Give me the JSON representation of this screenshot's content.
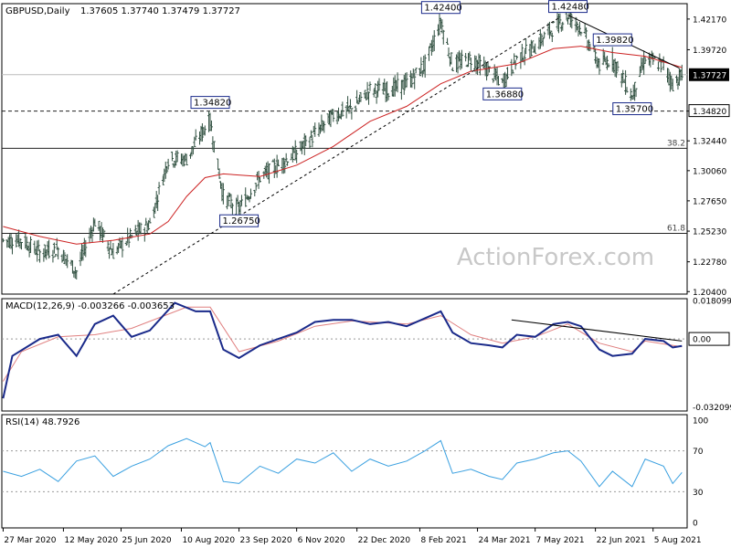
{
  "title": {
    "symbol": "GBPUSD,Daily",
    "ohlc": "1.37605 1.37740 1.37479 1.37727"
  },
  "watermark": "ActionForex.com",
  "chart_data": [
    {
      "type": "line",
      "name": "price",
      "ylim": [
        1.202,
        1.434
      ],
      "yticks": [
        "1.42170",
        "1.39720",
        "1.34820",
        "1.32440",
        "1.30060",
        "1.27650",
        "1.25230",
        "1.22780",
        "1.20400"
      ],
      "current_price_label": "1.37727",
      "current_price": 1.37727,
      "horizontal_levels": [
        {
          "value": 1.37727,
          "style": "solid",
          "color": "#bbbbbb"
        },
        {
          "value": 1.3482,
          "style": "dashed",
          "label": "1.34820"
        },
        {
          "value": 1.3185,
          "style": "solid",
          "label": "38.2"
        },
        {
          "value": 1.2505,
          "style": "solid",
          "label": "61.8"
        }
      ],
      "annotations": [
        {
          "text": "1.42400",
          "date": "2021-02-24",
          "value": 1.424
        },
        {
          "text": "1.42480",
          "date": "2021-06-01",
          "value": 1.4248
        },
        {
          "text": "1.39820",
          "date": "2021-07-05",
          "value": 1.3982
        },
        {
          "text": "1.36880",
          "date": "2021-04-12",
          "value": 1.3688
        },
        {
          "text": "1.35700",
          "date": "2021-07-20",
          "value": 1.357
        },
        {
          "text": "1.34820",
          "date": "2020-09-01",
          "value": 1.3482
        },
        {
          "text": "1.26750",
          "date": "2020-09-23",
          "value": 1.2675
        }
      ],
      "trendlines": [
        {
          "style": "dashed",
          "from": [
            "2020-06-19",
            1.202
          ],
          "to": [
            "2021-05-25",
            1.4225
          ]
        },
        {
          "style": "solid",
          "from": [
            "2021-06-01",
            1.4248
          ],
          "to": [
            "2021-08-25",
            1.3825
          ]
        }
      ],
      "close_series": [
        [
          "2020-03-27",
          1.245
        ],
        [
          "2020-04-10",
          1.245
        ],
        [
          "2020-04-24",
          1.235
        ],
        [
          "2020-05-08",
          1.238
        ],
        [
          "2020-05-22",
          1.22
        ],
        [
          "2020-06-05",
          1.26
        ],
        [
          "2020-06-19",
          1.235
        ],
        [
          "2020-07-03",
          1.248
        ],
        [
          "2020-07-17",
          1.258
        ],
        [
          "2020-07-31",
          1.31
        ],
        [
          "2020-08-14",
          1.31
        ],
        [
          "2020-08-28",
          1.335
        ],
        [
          "2020-09-01",
          1.34
        ],
        [
          "2020-09-11",
          1.28
        ],
        [
          "2020-09-23",
          1.27
        ],
        [
          "2020-10-09",
          1.295
        ],
        [
          "2020-10-23",
          1.305
        ],
        [
          "2020-11-06",
          1.315
        ],
        [
          "2020-11-20",
          1.33
        ],
        [
          "2020-12-04",
          1.345
        ],
        [
          "2020-12-18",
          1.35
        ],
        [
          "2021-01-01",
          1.365
        ],
        [
          "2021-01-15",
          1.365
        ],
        [
          "2021-01-29",
          1.37
        ],
        [
          "2021-02-12",
          1.385
        ],
        [
          "2021-02-24",
          1.42
        ],
        [
          "2021-03-05",
          1.385
        ],
        [
          "2021-03-19",
          1.39
        ],
        [
          "2021-04-02",
          1.38
        ],
        [
          "2021-04-12",
          1.37
        ],
        [
          "2021-04-23",
          1.39
        ],
        [
          "2021-05-07",
          1.4
        ],
        [
          "2021-05-21",
          1.415
        ],
        [
          "2021-06-01",
          1.424
        ],
        [
          "2021-06-11",
          1.415
        ],
        [
          "2021-06-25",
          1.385
        ],
        [
          "2021-07-05",
          1.39
        ],
        [
          "2021-07-20",
          1.36
        ],
        [
          "2021-07-30",
          1.39
        ],
        [
          "2021-08-13",
          1.385
        ],
        [
          "2021-08-20",
          1.37
        ],
        [
          "2021-08-27",
          1.3773
        ]
      ],
      "sma": [
        [
          "2020-03-27",
          1.256
        ],
        [
          "2020-04-24",
          1.248
        ],
        [
          "2020-05-22",
          1.242
        ],
        [
          "2020-06-19",
          1.245
        ],
        [
          "2020-07-17",
          1.25
        ],
        [
          "2020-07-31",
          1.26
        ],
        [
          "2020-08-14",
          1.28
        ],
        [
          "2020-08-28",
          1.295
        ],
        [
          "2020-09-11",
          1.298
        ],
        [
          "2020-10-09",
          1.296
        ],
        [
          "2020-11-06",
          1.305
        ],
        [
          "2020-12-04",
          1.32
        ],
        [
          "2021-01-01",
          1.34
        ],
        [
          "2021-01-29",
          1.352
        ],
        [
          "2021-02-24",
          1.37
        ],
        [
          "2021-03-19",
          1.38
        ],
        [
          "2021-04-23",
          1.386
        ],
        [
          "2021-05-21",
          1.398
        ],
        [
          "2021-06-11",
          1.4
        ],
        [
          "2021-07-05",
          1.395
        ],
        [
          "2021-07-30",
          1.392
        ],
        [
          "2021-08-27",
          1.383
        ]
      ]
    },
    {
      "type": "line",
      "name": "MACD",
      "label": "MACD(12,26,9) -0.003266 -0.003653",
      "ylim": [
        -0.034,
        0.019
      ],
      "yticks": [
        "0.018099",
        "0.00",
        "-0.032099"
      ],
      "zero_label": "0.00",
      "macd": [
        [
          "2020-03-27",
          -0.028
        ],
        [
          "2020-04-03",
          -0.008
        ],
        [
          "2020-04-24",
          0.0
        ],
        [
          "2020-05-08",
          0.002
        ],
        [
          "2020-05-22",
          -0.008
        ],
        [
          "2020-06-05",
          0.007
        ],
        [
          "2020-06-19",
          0.011
        ],
        [
          "2020-07-03",
          0.001
        ],
        [
          "2020-07-17",
          0.004
        ],
        [
          "2020-08-05",
          0.017
        ],
        [
          "2020-08-21",
          0.013
        ],
        [
          "2020-09-01",
          0.013
        ],
        [
          "2020-09-11",
          -0.005
        ],
        [
          "2020-09-23",
          -0.009
        ],
        [
          "2020-10-09",
          -0.003
        ],
        [
          "2020-10-23",
          0.0
        ],
        [
          "2020-11-06",
          0.003
        ],
        [
          "2020-11-20",
          0.008
        ],
        [
          "2020-12-04",
          0.009
        ],
        [
          "2020-12-18",
          0.009
        ],
        [
          "2021-01-01",
          0.007
        ],
        [
          "2021-01-15",
          0.008
        ],
        [
          "2021-01-29",
          0.006
        ],
        [
          "2021-02-24",
          0.013
        ],
        [
          "2021-03-05",
          0.003
        ],
        [
          "2021-03-19",
          -0.002
        ],
        [
          "2021-04-02",
          -0.003
        ],
        [
          "2021-04-12",
          -0.004
        ],
        [
          "2021-04-23",
          0.002
        ],
        [
          "2021-05-07",
          0.001
        ],
        [
          "2021-05-21",
          0.007
        ],
        [
          "2021-06-01",
          0.008
        ],
        [
          "2021-06-11",
          0.006
        ],
        [
          "2021-06-25",
          -0.005
        ],
        [
          "2021-07-05",
          -0.008
        ],
        [
          "2021-07-20",
          -0.007
        ],
        [
          "2021-07-30",
          0.0
        ],
        [
          "2021-08-13",
          -0.001
        ],
        [
          "2021-08-20",
          -0.004
        ],
        [
          "2021-08-27",
          -0.0033
        ]
      ],
      "signal": [
        [
          "2020-03-27",
          -0.02
        ],
        [
          "2020-04-10",
          -0.006
        ],
        [
          "2020-05-08",
          0.001
        ],
        [
          "2020-06-05",
          0.002
        ],
        [
          "2020-07-03",
          0.005
        ],
        [
          "2020-08-14",
          0.015
        ],
        [
          "2020-09-01",
          0.015
        ],
        [
          "2020-09-23",
          -0.006
        ],
        [
          "2020-10-23",
          -0.001
        ],
        [
          "2020-11-20",
          0.006
        ],
        [
          "2020-12-18",
          0.0085
        ],
        [
          "2021-01-29",
          0.007
        ],
        [
          "2021-02-24",
          0.011
        ],
        [
          "2021-03-19",
          0.002
        ],
        [
          "2021-04-12",
          -0.002
        ],
        [
          "2021-05-07",
          0.001
        ],
        [
          "2021-06-01",
          0.007
        ],
        [
          "2021-06-25",
          -0.002
        ],
        [
          "2021-07-20",
          -0.006
        ],
        [
          "2021-07-30",
          -0.001
        ],
        [
          "2021-08-27",
          -0.0037
        ]
      ],
      "trendline": {
        "from": [
          "2021-04-19",
          0.009
        ],
        "to": [
          "2021-08-27",
          -0.001
        ]
      }
    },
    {
      "type": "line",
      "name": "RSI",
      "label": "RSI(14) 48.7926",
      "ylim": [
        0,
        100
      ],
      "yticks": [
        "100",
        "70",
        "30",
        "0"
      ],
      "levels": [
        70,
        30
      ],
      "rsi": [
        [
          "2020-03-27",
          50
        ],
        [
          "2020-04-10",
          45
        ],
        [
          "2020-04-24",
          52
        ],
        [
          "2020-05-08",
          40
        ],
        [
          "2020-05-22",
          60
        ],
        [
          "2020-06-05",
          65
        ],
        [
          "2020-06-19",
          45
        ],
        [
          "2020-07-03",
          55
        ],
        [
          "2020-07-17",
          62
        ],
        [
          "2020-07-31",
          75
        ],
        [
          "2020-08-14",
          82
        ],
        [
          "2020-08-28",
          74
        ],
        [
          "2020-09-01",
          78
        ],
        [
          "2020-09-11",
          40
        ],
        [
          "2020-09-23",
          38
        ],
        [
          "2020-10-09",
          55
        ],
        [
          "2020-10-23",
          48
        ],
        [
          "2020-11-06",
          62
        ],
        [
          "2020-11-20",
          58
        ],
        [
          "2020-12-04",
          68
        ],
        [
          "2020-12-18",
          50
        ],
        [
          "2021-01-01",
          62
        ],
        [
          "2021-01-15",
          55
        ],
        [
          "2021-01-29",
          60
        ],
        [
          "2021-02-12",
          70
        ],
        [
          "2021-02-24",
          80
        ],
        [
          "2021-03-05",
          48
        ],
        [
          "2021-03-19",
          52
        ],
        [
          "2021-04-02",
          45
        ],
        [
          "2021-04-12",
          42
        ],
        [
          "2021-04-23",
          58
        ],
        [
          "2021-05-07",
          62
        ],
        [
          "2021-05-21",
          68
        ],
        [
          "2021-06-01",
          70
        ],
        [
          "2021-06-11",
          60
        ],
        [
          "2021-06-25",
          35
        ],
        [
          "2021-07-05",
          50
        ],
        [
          "2021-07-20",
          35
        ],
        [
          "2021-07-30",
          62
        ],
        [
          "2021-08-13",
          55
        ],
        [
          "2021-08-20",
          38
        ],
        [
          "2021-08-27",
          48.8
        ]
      ]
    }
  ],
  "date_axis": {
    "range": [
      "2020-03-26",
      "2021-08-31"
    ],
    "ticks": [
      {
        "label": "27 Mar 2020",
        "date": "2020-03-27"
      },
      {
        "label": "12 May 2020",
        "date": "2020-05-12"
      },
      {
        "label": "25 Jun 2020",
        "date": "2020-06-25"
      },
      {
        "label": "10 Aug 2020",
        "date": "2020-08-10"
      },
      {
        "label": "23 Sep 2020",
        "date": "2020-09-23"
      },
      {
        "label": "6 Nov 2020",
        "date": "2020-11-06"
      },
      {
        "label": "22 Dec 2020",
        "date": "2020-12-22"
      },
      {
        "label": "8 Feb 2021",
        "date": "2021-02-08"
      },
      {
        "label": "24 Mar 2021",
        "date": "2021-03-24"
      },
      {
        "label": "7 May 2021",
        "date": "2021-05-07"
      },
      {
        "label": "22 Jun 2021",
        "date": "2021-06-22"
      },
      {
        "label": "5 Aug 2021",
        "date": "2021-08-05"
      }
    ]
  },
  "colors": {
    "price_bar": "#2f4f3f",
    "sma": "#cc2222",
    "macd": "#1a2a8a",
    "signal": "#e08080",
    "rsi": "#3aa0e0",
    "grid_level": "#222222",
    "current_box": "#000000",
    "watermark": "#c8c8c8"
  }
}
